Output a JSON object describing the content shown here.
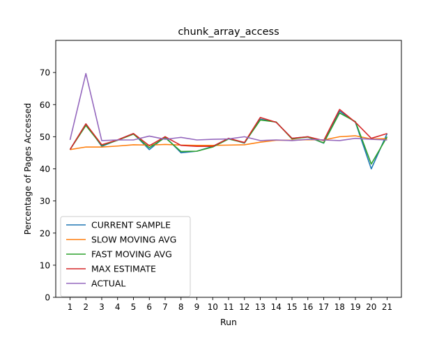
{
  "chart_data": {
    "type": "line",
    "title": "chunk_array_access",
    "xlabel": "Run",
    "ylabel": "Percentage of Pages Accessed",
    "x": [
      1,
      2,
      3,
      4,
      5,
      6,
      7,
      8,
      9,
      10,
      11,
      12,
      13,
      14,
      15,
      16,
      17,
      18,
      19,
      20,
      21
    ],
    "xlim": [
      0.1,
      21.9
    ],
    "ylim": [
      0,
      80
    ],
    "yticks": [
      0,
      10,
      20,
      30,
      40,
      50,
      60,
      70
    ],
    "grid": false,
    "legend_position": "lower-left",
    "series": [
      {
        "name": "CURRENT SAMPLE",
        "color": "#1f77b4",
        "values": [
          46,
          54,
          47,
          49,
          51,
          46,
          50,
          45,
          45.5,
          47,
          49.5,
          48,
          55.5,
          54.5,
          49.5,
          50,
          48,
          58,
          54.5,
          40,
          51
        ]
      },
      {
        "name": "SLOW MOVING AVG",
        "color": "#ff7f0e",
        "values": [
          46,
          46.8,
          46.8,
          47.1,
          47.5,
          47.4,
          47.6,
          47.4,
          47.3,
          47.3,
          47.4,
          47.5,
          48.3,
          48.9,
          48.9,
          49.1,
          49,
          50,
          50.3,
          49.3,
          49.4
        ]
      },
      {
        "name": "FAST MOVING AVG",
        "color": "#2ca02c",
        "values": [
          46,
          53.5,
          47.3,
          48.9,
          50.8,
          46.6,
          49.7,
          45.4,
          45.5,
          46.8,
          49.3,
          48.1,
          55.2,
          54.6,
          49.3,
          49.9,
          48.1,
          57.4,
          54.7,
          41.5,
          50
        ]
      },
      {
        "name": "MAX ESTIMATE",
        "color": "#d62728",
        "values": [
          46,
          54,
          47.5,
          49,
          51,
          47.2,
          50,
          47.3,
          47,
          47,
          49.5,
          48.2,
          56,
          54.5,
          49.5,
          50,
          48.8,
          58.5,
          54.5,
          49.5,
          51
        ]
      },
      {
        "name": "ACTUAL",
        "color": "#9467bd",
        "values": [
          49,
          69.7,
          48.8,
          49,
          49,
          50.2,
          49.2,
          49.8,
          49,
          49.2,
          49.3,
          50,
          48.8,
          49,
          48.8,
          49.2,
          49,
          48.8,
          49.5,
          49.2,
          49
        ]
      }
    ]
  }
}
